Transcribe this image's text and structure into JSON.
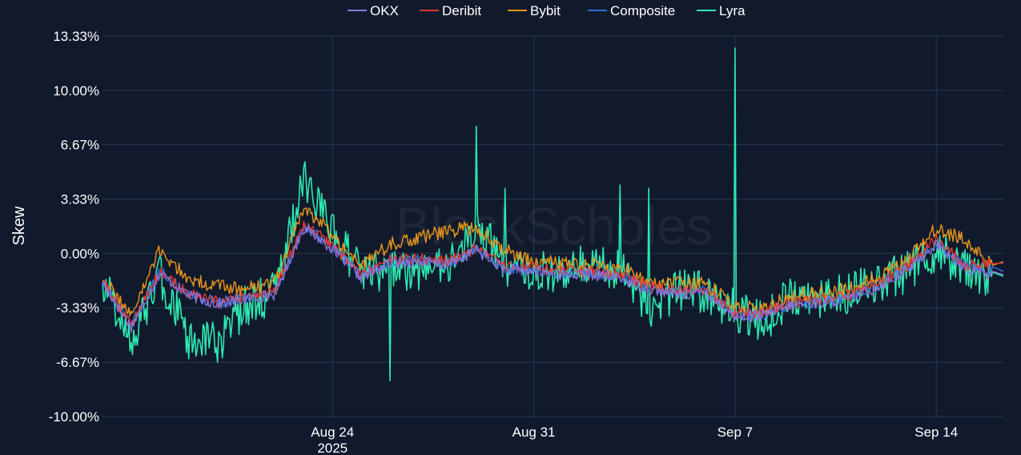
{
  "chart_data": {
    "type": "line",
    "title": "",
    "xlabel": "",
    "ylabel": "Skew",
    "watermark": "BlockScholes",
    "x_range": [
      "2025-08-16T00:00",
      "2025-09-16T08:00"
    ],
    "ylim": [
      -10.0,
      13.33
    ],
    "y_ticks": [
      {
        "value": 13.33,
        "label": "13.33%"
      },
      {
        "value": 10.0,
        "label": "10.00%"
      },
      {
        "value": 6.67,
        "label": "6.67%"
      },
      {
        "value": 3.33,
        "label": "3.33%"
      },
      {
        "value": 0.0,
        "label": "0.00%"
      },
      {
        "value": -3.33,
        "label": "-3.33%"
      },
      {
        "value": -6.67,
        "label": "-6.67%"
      },
      {
        "value": -10.0,
        "label": "-10.00%"
      }
    ],
    "x_ticks": [
      {
        "date": "2025-08-24",
        "label": "Aug 24",
        "sublabel": "2025"
      },
      {
        "date": "2025-08-31",
        "label": "Aug 31",
        "sublabel": ""
      },
      {
        "date": "2025-09-07",
        "label": "Sep 7",
        "sublabel": ""
      },
      {
        "date": "2025-09-14",
        "label": "Sep 14",
        "sublabel": ""
      }
    ],
    "grid": true,
    "legend_position": "top-center",
    "x": [
      "2025-08-16",
      "2025-08-17",
      "2025-08-18",
      "2025-08-19",
      "2025-08-20",
      "2025-08-21",
      "2025-08-22",
      "2025-08-23",
      "2025-08-24",
      "2025-08-25",
      "2025-08-26",
      "2025-08-27",
      "2025-08-28",
      "2025-08-29",
      "2025-08-30",
      "2025-08-31",
      "2025-09-01",
      "2025-09-02",
      "2025-09-03",
      "2025-09-04",
      "2025-09-05",
      "2025-09-06",
      "2025-09-07",
      "2025-09-08",
      "2025-09-09",
      "2025-09-10",
      "2025-09-11",
      "2025-09-12",
      "2025-09-13",
      "2025-09-14",
      "2025-09-15",
      "2025-09-16"
    ],
    "series": [
      {
        "name": "OKX",
        "color": "#8b74d9",
        "values": [
          -1.8,
          -4.5,
          -1.2,
          -2.6,
          -3.1,
          -2.8,
          -2.5,
          1.6,
          0.3,
          -1.5,
          -0.6,
          -0.5,
          -0.7,
          0.2,
          -1.0,
          -1.1,
          -1.3,
          -1.3,
          -1.5,
          -2.2,
          -2.5,
          -2.4,
          -3.9,
          -3.8,
          -3.2,
          -3.0,
          -2.8,
          -2.0,
          -1.0,
          0.6,
          -1.0,
          -1.3
        ]
      },
      {
        "name": "Deribit",
        "color": "#e5342a",
        "values": [
          -1.7,
          -4.3,
          -1.1,
          -2.5,
          -3.0,
          -2.7,
          -2.4,
          1.8,
          0.5,
          -1.3,
          -0.4,
          -0.3,
          -0.5,
          0.3,
          -0.8,
          -0.9,
          -1.1,
          -1.1,
          -1.3,
          -2.0,
          -2.3,
          -2.2,
          -3.7,
          -3.6,
          -3.0,
          -2.8,
          -2.6,
          -1.8,
          -0.8,
          0.9,
          -0.7,
          -0.6
        ]
      },
      {
        "name": "Bybit",
        "color": "#e8941a",
        "values": [
          -1.5,
          -3.8,
          0.2,
          -1.6,
          -2.0,
          -2.2,
          -1.8,
          2.8,
          1.2,
          -0.8,
          0.6,
          0.9,
          1.4,
          1.6,
          0.2,
          -0.5,
          -0.6,
          -0.7,
          -0.9,
          -1.7,
          -1.8,
          -1.9,
          -3.2,
          -3.4,
          -2.6,
          -2.4,
          -2.2,
          -1.4,
          -0.4,
          1.6,
          0.8,
          -0.5
        ]
      },
      {
        "name": "Composite",
        "color": "#2f6fd6",
        "values": [
          -1.7,
          -4.4,
          -1.1,
          -2.5,
          -3.0,
          -2.7,
          -2.5,
          1.7,
          0.4,
          -1.4,
          -0.5,
          -0.4,
          -0.6,
          0.2,
          -0.9,
          -1.0,
          -1.2,
          -1.2,
          -1.4,
          -2.1,
          -2.4,
          -2.3,
          -3.8,
          -3.7,
          -3.1,
          -2.9,
          -2.7,
          -1.9,
          -0.9,
          0.7,
          -0.8,
          -1.1
        ]
      },
      {
        "name": "Lyra",
        "color": "#2ee8b0",
        "values": [
          -1.5,
          -5.6,
          -1.3,
          -5.2,
          -5.5,
          -3.2,
          -2.4,
          4.5,
          1.4,
          -1.2,
          -1.1,
          -1.0,
          -0.9,
          1.8,
          -0.7,
          -1.0,
          -1.2,
          -0.6,
          -1.0,
          -3.5,
          -2.2,
          -2.4,
          -3.5,
          -4.2,
          -2.5,
          -2.7,
          -2.4,
          -1.8,
          -1.1,
          0.2,
          -0.9,
          -1.4
        ]
      }
    ],
    "spikes": [
      {
        "series": "Lyra",
        "x": "2025-09-07",
        "value": 12.6
      },
      {
        "series": "Lyra",
        "x": "2025-08-29",
        "value": 7.8
      },
      {
        "series": "Lyra",
        "x": "2025-08-26",
        "value": -7.8
      },
      {
        "series": "Lyra",
        "x": "2025-09-04",
        "value": 4.0
      },
      {
        "series": "Lyra",
        "x": "2025-09-03",
        "value": 4.2
      },
      {
        "series": "Lyra",
        "x": "2025-08-30",
        "value": 4.0
      }
    ]
  }
}
